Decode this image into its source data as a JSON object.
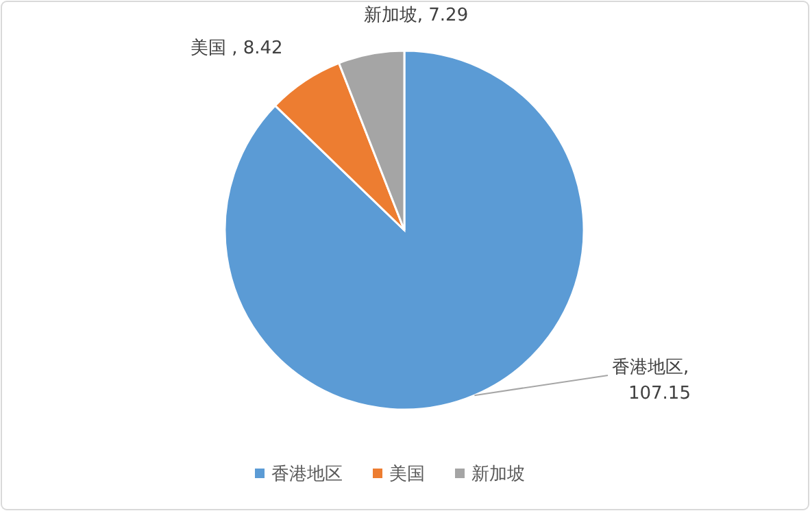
{
  "chart_data": {
    "type": "pie",
    "categories": [
      "香港地区",
      "美国",
      "新加坡"
    ],
    "values": [
      107.15,
      8.42,
      7.29
    ],
    "colors": [
      "#5b9bd5",
      "#ed7d31",
      "#a5a5a5"
    ],
    "value_labels": [
      "香港地区, 107.15",
      "美国 , 8.42",
      "新加坡, 7.29"
    ],
    "legend": "bottom"
  }
}
